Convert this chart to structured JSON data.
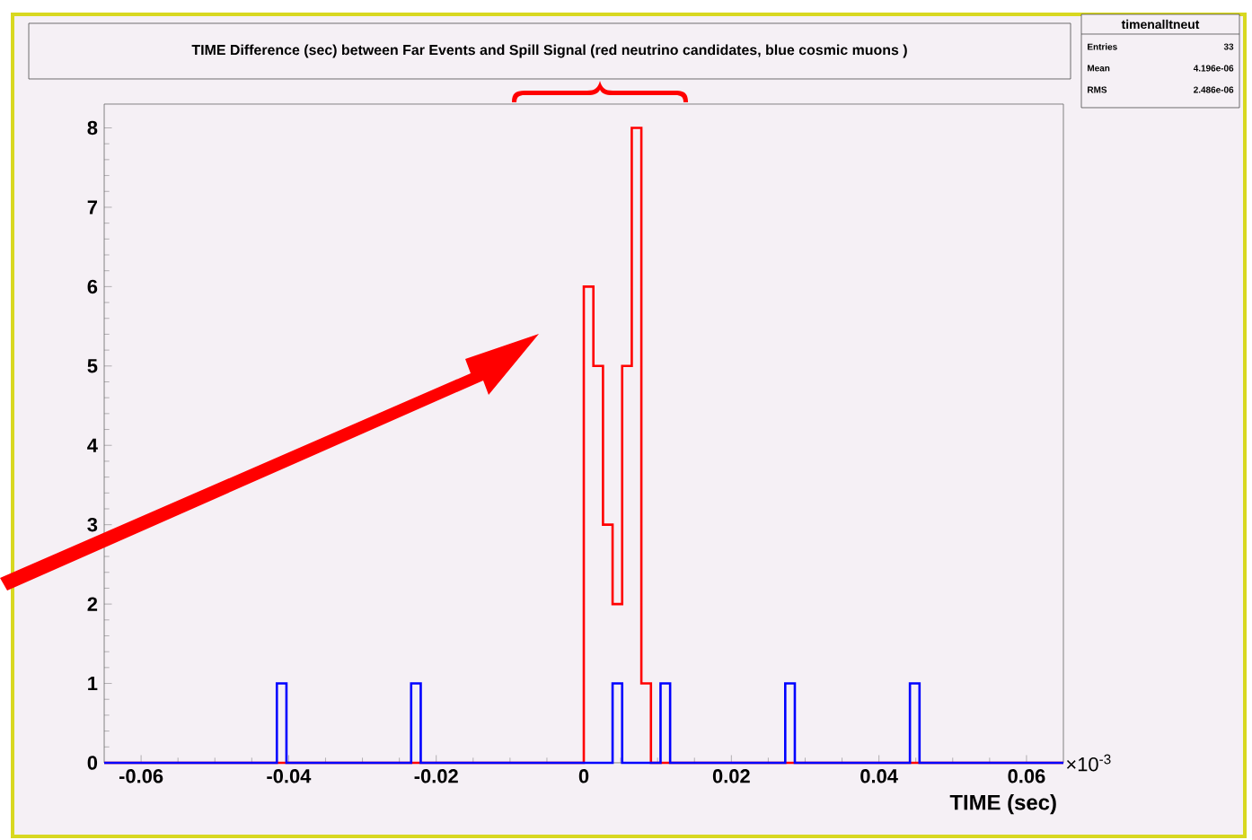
{
  "chart_data": {
    "type": "histogram",
    "title": "TIME Difference (sec) between Far Events and Spill Signal (red neutrino candidates, blue cosmic muons )",
    "xlabel": "TIME (sec)",
    "bins": [
      -0.065,
      -0.0637,
      -0.0624,
      -0.0611,
      -0.0598,
      -0.0585,
      -0.0572,
      -0.0559,
      -0.0546,
      -0.0533,
      -0.052,
      -0.0507,
      -0.0494,
      -0.0481,
      -0.0468,
      -0.0455,
      -0.0442,
      -0.0429,
      -0.0416,
      -0.0403,
      -0.039,
      -0.0377,
      -0.0364,
      -0.0351,
      -0.0338,
      -0.0325,
      -0.0312,
      -0.0299,
      -0.0286,
      -0.0273,
      -0.026,
      -0.0247,
      -0.0234,
      -0.0221,
      -0.0208,
      -0.0195,
      -0.0182,
      -0.0169,
      -0.0156,
      -0.0143,
      -0.013,
      -0.0117,
      -0.0104,
      -0.0091,
      -0.0078,
      -0.0065,
      -0.0052,
      -0.0039,
      -0.0026,
      -0.0013,
      0,
      0.0013,
      0.0026,
      0.0039,
      0.0052,
      0.0065,
      0.0078,
      0.0091,
      0.0104,
      0.0117,
      0.013,
      0.0143,
      0.0156,
      0.0169,
      0.0182,
      0.0195,
      0.0208,
      0.0221,
      0.0234,
      0.0247,
      0.026,
      0.0273,
      0.0286,
      0.0299,
      0.0312,
      0.0325,
      0.0338,
      0.0351,
      0.0364,
      0.0377,
      0.039,
      0.0403,
      0.0416,
      0.0429,
      0.0442,
      0.0455,
      0.0468,
      0.0481,
      0.0494,
      0.0507,
      0.052,
      0.0533,
      0.0546,
      0.0559,
      0.0572,
      0.0585,
      0.0598,
      0.0611,
      0.0624,
      0.0637,
      0.065
    ],
    "series": [
      {
        "color": "#ff0000",
        "values": [
          0,
          0,
          0,
          0,
          0,
          0,
          0,
          0,
          0,
          0,
          0,
          0,
          0,
          0,
          0,
          0,
          0,
          0,
          0,
          0,
          0,
          0,
          0,
          0,
          0,
          0,
          0,
          0,
          0,
          0,
          0,
          0,
          0,
          0,
          0,
          0,
          0,
          0,
          0,
          0,
          0,
          0,
          0,
          0,
          0,
          0,
          0,
          0,
          0,
          0,
          6,
          5,
          3,
          2,
          5,
          8,
          1,
          0,
          0,
          0,
          0,
          0,
          0,
          0,
          0,
          0,
          0,
          0,
          0,
          0,
          0,
          0,
          0,
          0,
          0,
          0,
          0,
          0,
          0,
          0,
          0,
          0,
          0,
          0,
          0,
          0,
          0,
          0,
          0,
          0,
          0,
          0,
          0,
          0,
          0,
          0,
          0,
          0,
          0,
          0
        ]
      },
      {
        "color": "#0000ff",
        "values": [
          0,
          0,
          0,
          0,
          0,
          0,
          0,
          0,
          0,
          0,
          0,
          0,
          0,
          0,
          0,
          0,
          0,
          0,
          1,
          0,
          0,
          0,
          0,
          0,
          0,
          0,
          0,
          0,
          0,
          0,
          0,
          0,
          1,
          0,
          0,
          0,
          0,
          0,
          0,
          0,
          0,
          0,
          0,
          0,
          0,
          0,
          0,
          0,
          0,
          0,
          0,
          0,
          0,
          1,
          0,
          0,
          0,
          0,
          1,
          0,
          0,
          0,
          0,
          0,
          0,
          0,
          0,
          0,
          0,
          0,
          0,
          1,
          0,
          0,
          0,
          0,
          0,
          0,
          0,
          0,
          0,
          0,
          0,
          0,
          1,
          0,
          0,
          0,
          0,
          0,
          0,
          0,
          0,
          0,
          0,
          0,
          0,
          0,
          0,
          0
        ]
      }
    ],
    "xlim": [
      -0.065,
      0.065
    ],
    "ylim": [
      0,
      8.3
    ],
    "xticks": [
      -0.06,
      -0.04,
      -0.02,
      0,
      0.02,
      0.04,
      0.06
    ],
    "yticks": [
      0,
      1,
      2,
      3,
      4,
      5,
      6,
      7,
      8
    ],
    "annotations": [
      "×10$^{-3}$",
      "timenalltneut",
      "Entries",
      "33",
      "Mean",
      "4.196e-06",
      "RMS",
      "2.486e-06"
    ]
  }
}
